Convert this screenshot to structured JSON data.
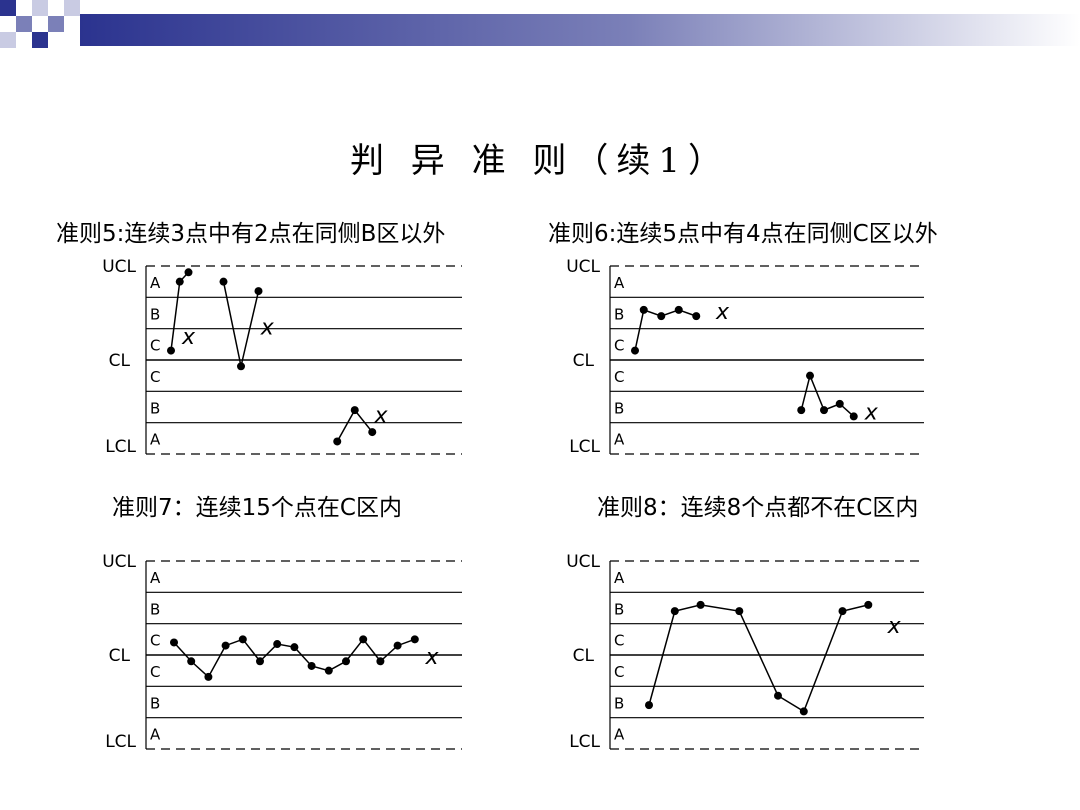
{
  "slide": {
    "title": "判 异 准 则（续1）"
  },
  "colors": {
    "deco_dark": "#2b338f",
    "deco_mid": "#7b80b8",
    "deco_light": "#c9cbe3"
  },
  "zone_labels": {
    "ucl": "UCL",
    "cl": "CL",
    "lcl": "LCL",
    "a": "A",
    "b": "B",
    "c": "C"
  },
  "marker": "x",
  "chart_data": [
    {
      "type": "line",
      "rule_title": "准则5:连续3点中有2点在同侧B区以外",
      "y_scale": "sigma zones: +3=UCL, 0=CL, -3=LCL",
      "series": [
        {
          "x": [
            0,
            0.5,
            1.0
          ],
          "y": [
            0.3,
            2.5,
            2.8
          ]
        },
        {
          "x": [
            3.0,
            4.0,
            5.0
          ],
          "y": [
            2.5,
            -0.2,
            2.2
          ]
        },
        {
          "x": [
            9.5,
            10.5,
            11.5
          ],
          "y": [
            -2.6,
            -1.6,
            -2.3
          ]
        }
      ],
      "x_marks": [
        {
          "x": 1.0,
          "y": 0.7
        },
        {
          "x": 5.5,
          "y": 1.0
        },
        {
          "x": 12.0,
          "y": -1.8
        }
      ]
    },
    {
      "type": "line",
      "rule_title": "准则6:连续5点中有4点在同侧C区以外",
      "y_scale": "sigma zones: +3=UCL, 0=CL, -3=LCL",
      "series": [
        {
          "x": [
            0,
            0.5,
            1.5,
            2.5,
            3.5
          ],
          "y": [
            0.3,
            1.6,
            1.4,
            1.6,
            1.4
          ]
        },
        {
          "x": [
            9.5,
            10.0,
            10.8,
            11.7,
            12.5
          ],
          "y": [
            -1.6,
            -0.5,
            -1.6,
            -1.4,
            -1.8
          ]
        }
      ],
      "x_marks": [
        {
          "x": 5.0,
          "y": 1.5
        },
        {
          "x": 13.5,
          "y": -1.7
        }
      ]
    },
    {
      "type": "line",
      "rule_title": "准则7：连续15个点在C区内",
      "y_scale": "sigma zones: +3=UCL, 0=CL, -3=LCL",
      "series": [
        {
          "x": [
            0,
            1,
            2,
            3,
            4,
            5,
            6,
            7,
            8,
            9,
            10,
            11,
            12,
            13,
            14
          ],
          "y": [
            0.4,
            -0.2,
            -0.7,
            0.3,
            0.5,
            -0.2,
            0.35,
            0.25,
            -0.35,
            -0.5,
            -0.2,
            0.5,
            -0.2,
            0.3,
            0.5
          ]
        }
      ],
      "x_marks": [
        {
          "x": 15.0,
          "y": -0.1
        }
      ]
    },
    {
      "type": "line",
      "rule_title": "准则8：连续8个点都不在C区内",
      "y_scale": "sigma zones: +3=UCL, 0=CL, -3=LCL",
      "series": [
        {
          "x": [
            0,
            1,
            2,
            3.5,
            5,
            6,
            7.5,
            8.5
          ],
          "y": [
            -1.6,
            1.4,
            1.6,
            1.4,
            -1.3,
            -1.8,
            1.4,
            1.6
          ]
        }
      ],
      "x_marks": [
        {
          "x": 9.5,
          "y": 0.9
        }
      ]
    }
  ]
}
